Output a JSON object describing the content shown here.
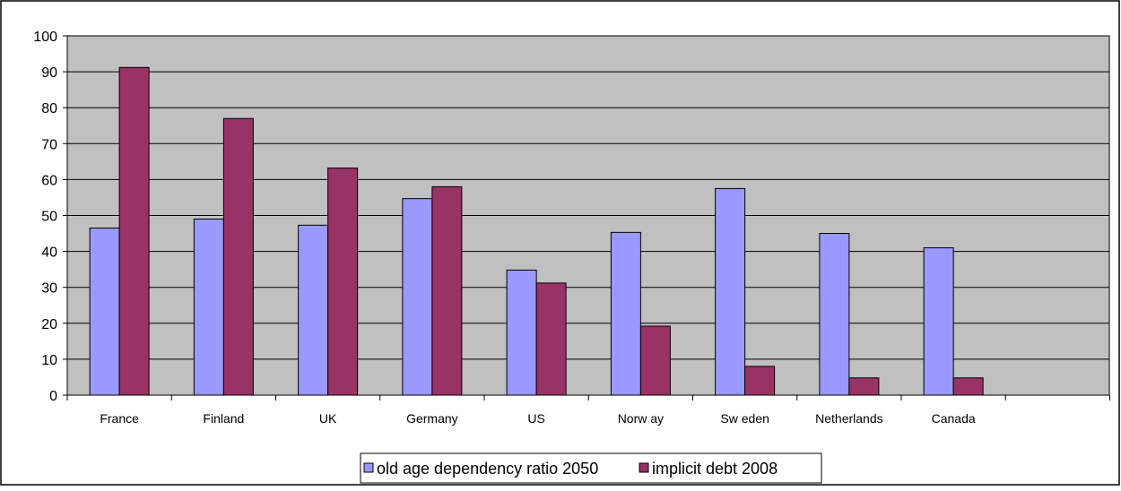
{
  "colors": {
    "plot_background": "#c0c0c0",
    "series_1": "#9999ff",
    "series_2": "#993366",
    "gridline": "#000000",
    "border": "#000000"
  },
  "chart_data": {
    "type": "bar",
    "title": "",
    "xlabel": "",
    "ylabel": "",
    "ylim": [
      0,
      100
    ],
    "yticks": [
      0,
      10,
      20,
      30,
      40,
      50,
      60,
      70,
      80,
      90,
      100
    ],
    "grid": true,
    "legend_position": "bottom",
    "categories": [
      "France",
      "Finland",
      "UK",
      "Germany",
      "US",
      "Norw ay",
      "Sw eden",
      "Netherlands",
      "Canada"
    ],
    "series": [
      {
        "name": "old age dependency ratio 2050",
        "values": [
          46.5,
          49,
          47.3,
          54.7,
          34.8,
          45.3,
          57.5,
          45,
          41
        ]
      },
      {
        "name": "implicit debt 2008",
        "values": [
          91.2,
          77,
          63.2,
          58,
          31.2,
          19.2,
          8,
          4.8,
          4.8
        ]
      }
    ]
  }
}
